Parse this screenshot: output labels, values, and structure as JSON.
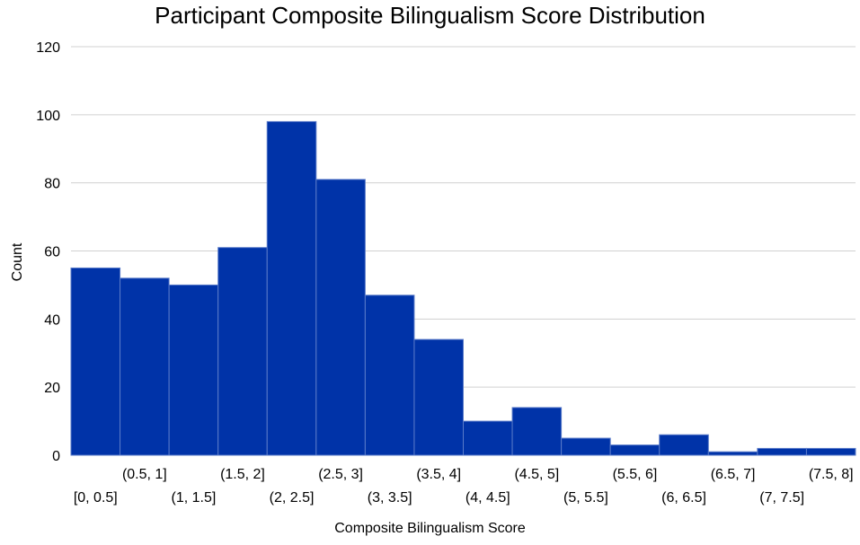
{
  "chart_data": {
    "type": "bar",
    "title": "Participant Composite Bilingualism Score Distribution",
    "xlabel": "Composite Bilingualism Score",
    "ylabel": "Count",
    "categories": [
      "[0, 0.5]",
      "(0.5, 1]",
      "(1, 1.5]",
      "(1.5, 2]",
      "(2, 2.5]",
      "(2.5, 3]",
      "(3, 3.5]",
      "(3.5, 4]",
      "(4, 4.5]",
      "(4.5, 5]",
      "(5, 5.5]",
      "(5.5, 6]",
      "(6, 6.5]",
      "(6.5, 7]",
      "(7, 7.5]",
      "(7.5, 8]"
    ],
    "values": [
      55,
      52,
      50,
      61,
      98,
      81,
      47,
      34,
      10,
      14,
      5,
      3,
      6,
      1,
      2,
      2
    ],
    "ylim": [
      0,
      120
    ],
    "yticks": [
      0,
      20,
      40,
      60,
      80,
      100,
      120
    ],
    "grid": true,
    "bar_color": "#0033A8",
    "bar_edge_color": "#5A7BC9",
    "grid_color": "#D0D0D0"
  }
}
